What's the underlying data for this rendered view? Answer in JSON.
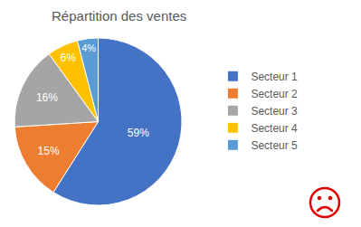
{
  "chart_data": {
    "type": "pie",
    "title": "Répartition des ventes",
    "categories": [
      "Secteur 1",
      "Secteur 2",
      "Secteur 3",
      "Secteur 4",
      "Secteur 5"
    ],
    "values": [
      59,
      15,
      16,
      6,
      4
    ],
    "value_labels": [
      "59%",
      "15%",
      "16%",
      "6%",
      "4%"
    ],
    "colors": [
      "#4472c4",
      "#ed7d31",
      "#a5a5a5",
      "#ffc000",
      "#5b9bd5"
    ],
    "data_labels": true,
    "legend": "right"
  }
}
